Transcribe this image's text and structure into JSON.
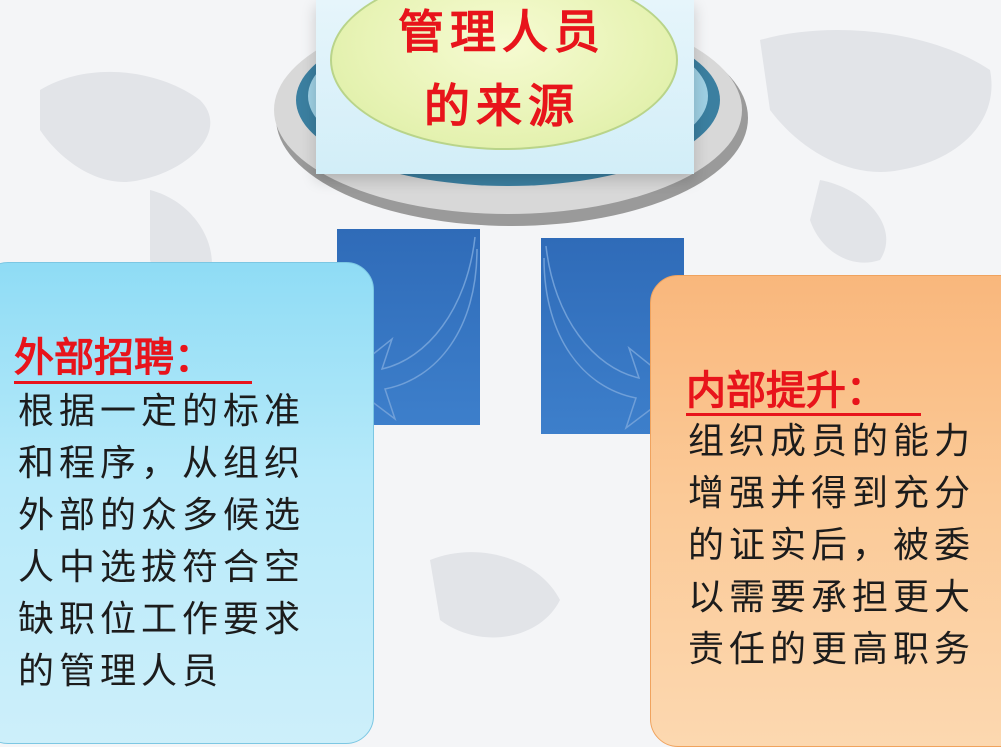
{
  "title": {
    "line1": "管理人员",
    "line2": "的来源"
  },
  "left_panel": {
    "heading": "外部招聘：",
    "lines": [
      "根据一定的标准",
      "和程序，从组织",
      "外部的众多候选",
      "人中选拔符合空",
      "缺职位工作要求",
      "的管理人员"
    ],
    "color": "#9fe2f7"
  },
  "right_panel": {
    "heading": "内部提升：",
    "lines": [
      "组织成员的能力",
      "增强并得到充分",
      "的证实后，被委",
      "以需要承担更大",
      "责任的更高职务"
    ],
    "color": "#fbc08a"
  },
  "colors": {
    "heading": "#e8141b",
    "title": "#e8141b",
    "arrow": "#2f6bb8"
  }
}
